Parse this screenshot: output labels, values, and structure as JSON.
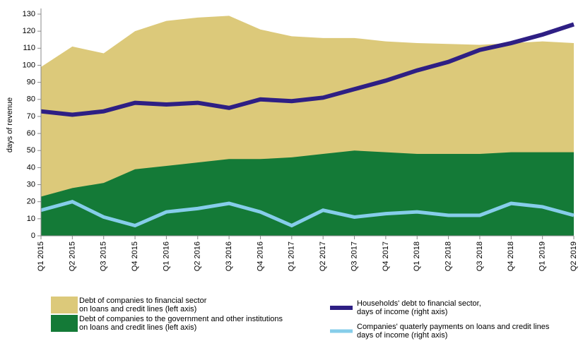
{
  "chart_data": {
    "type": "area",
    "ylabel": "days of revenue",
    "categories": [
      "Q1 2015",
      "Q2 2015",
      "Q3 2015",
      "Q4 2015",
      "Q1 2016",
      "Q2 2016",
      "Q3 2016",
      "Q4 2016",
      "Q1 2017",
      "Q2 2017",
      "Q3 2017",
      "Q4 2017",
      "Q1 2018",
      "Q2 2018",
      "Q3 2018",
      "Q4 2018",
      "Q1 2019",
      "Q2 2019"
    ],
    "series": [
      {
        "name": "Debt of companies to financial sector\n on loans and credit lines (left axis)",
        "color": "#dcc97a",
        "style": "area",
        "values": [
          99,
          111,
          107,
          120,
          126,
          128,
          129,
          121,
          117,
          116,
          116,
          114,
          113,
          112.5,
          112,
          113,
          114,
          113
        ]
      },
      {
        "name": "Debt of companies to the government and other institutions\n on loans and credit lines (left axis)",
        "color": "#147a37",
        "style": "area",
        "values": [
          23,
          28,
          31,
          39,
          41,
          43,
          45,
          45,
          46,
          48,
          50,
          49,
          48,
          48,
          48,
          49,
          49,
          49
        ]
      },
      {
        "name": "Households' debt to financial sector,\n days of income (right axis)",
        "color": "#2e1f84",
        "style": "line",
        "values": [
          73,
          71,
          73,
          78,
          77,
          78,
          75,
          80,
          79,
          81,
          86,
          91,
          97,
          102,
          109,
          113,
          118,
          124
        ]
      },
      {
        "name": "Companies' quaterly payments on loans and credit lines\n days of income (right axis)",
        "color": "#86cdea",
        "style": "line",
        "values": [
          15,
          20,
          11,
          6,
          14,
          16,
          19,
          14,
          6,
          15,
          11,
          13,
          14,
          12,
          12,
          19,
          17,
          12
        ]
      }
    ],
    "ylim": [
      0,
      130
    ],
    "yticks": [
      0,
      10,
      20,
      30,
      40,
      50,
      60,
      70,
      80,
      90,
      100,
      110,
      120,
      130
    ]
  }
}
